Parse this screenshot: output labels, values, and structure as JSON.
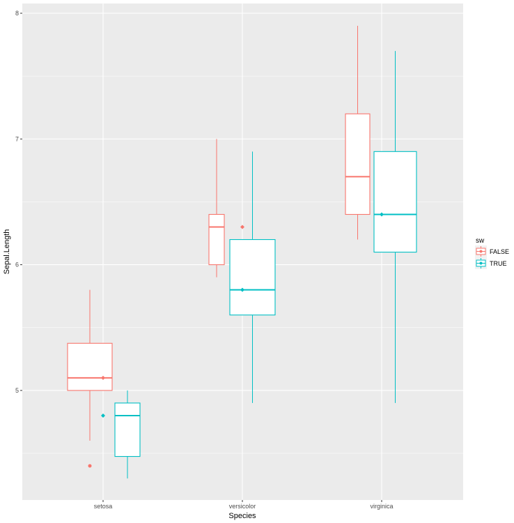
{
  "chart_data": {
    "type": "boxplot",
    "title": "",
    "xlabel": "Species",
    "ylabel": "Sepal.Length",
    "categories": [
      "setosa",
      "versicolor",
      "virginica"
    ],
    "ylim": [
      4.13,
      8.08
    ],
    "yticks": [
      5,
      6,
      7,
      8
    ],
    "grid": true,
    "legend": {
      "title": "sw",
      "position": "right"
    },
    "series": [
      {
        "name": "FALSE",
        "color": "#F8766D",
        "boxes": [
          {
            "category": "setosa",
            "min": 4.6,
            "q1": 5.0,
            "median": 5.1,
            "q3": 5.375,
            "max": 5.8,
            "outliers": [
              4.4
            ],
            "mean": 5.1
          },
          {
            "category": "versicolor",
            "min": 5.9,
            "q1": 6.0,
            "median": 6.3,
            "q3": 6.4,
            "max": 7.0,
            "outliers": [],
            "mean": 6.3
          },
          {
            "category": "virginica",
            "min": 6.2,
            "q1": 6.4,
            "median": 6.7,
            "q3": 7.2,
            "max": 7.9,
            "outliers": [],
            "mean": 6.7
          }
        ]
      },
      {
        "name": "TRUE",
        "color": "#00BFC4",
        "boxes": [
          {
            "category": "setosa",
            "min": 4.3,
            "q1": 4.475,
            "median": 4.8,
            "q3": 4.9,
            "max": 5.0,
            "outliers": [],
            "mean": 4.8
          },
          {
            "category": "versicolor",
            "min": 4.9,
            "q1": 5.6,
            "median": 5.8,
            "q3": 6.2,
            "max": 6.9,
            "outliers": [],
            "mean": 5.8
          },
          {
            "category": "virginica",
            "min": 4.9,
            "q1": 6.1,
            "median": 6.4,
            "q3": 6.9,
            "max": 7.7,
            "outliers": [],
            "mean": 6.4
          }
        ]
      }
    ]
  }
}
